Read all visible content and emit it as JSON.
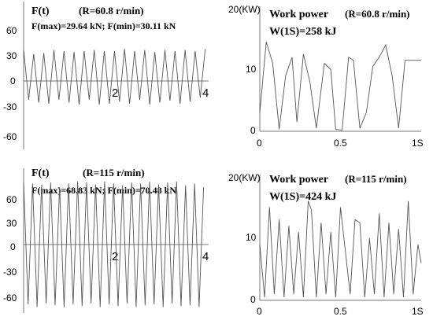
{
  "chart_data": [
    {
      "id": "force-60",
      "type": "line",
      "title_main": "F(t)",
      "title_cond": "(R=60.8 r/min)",
      "annotation": "F(max)=29.64 kN; F(min)=30.11 kN",
      "yticks": [
        "60",
        "30",
        "0",
        "-30",
        "-60"
      ],
      "xticks": [
        "2",
        "4"
      ],
      "xlim": [
        0,
        4.4
      ],
      "ylim": [
        -72,
        72
      ],
      "series": [
        {
          "values_x": [
            0,
            0.12,
            0.24,
            0.36,
            0.48,
            0.6,
            0.72,
            0.84,
            0.96,
            1.08,
            1.2,
            1.32,
            1.44,
            1.56,
            1.68,
            1.8,
            1.92,
            2.04,
            2.16,
            2.28,
            2.4,
            2.52,
            2.64,
            2.76,
            2.88,
            3.0,
            3.12,
            3.24,
            3.36,
            3.48,
            3.6,
            3.72,
            3.84,
            3.96,
            4.08,
            4.2,
            4.32
          ],
          "values_y": [
            28,
            -22,
            24,
            -25,
            25,
            -26,
            28,
            -22,
            27,
            -25,
            26,
            -27,
            27,
            -22,
            28,
            -27,
            27,
            -26,
            27,
            -24,
            29,
            -26,
            27,
            -22,
            28,
            -27,
            26,
            -25,
            28,
            -23,
            27,
            -26,
            28,
            -24,
            27,
            -20,
            29
          ]
        }
      ]
    },
    {
      "id": "power-60",
      "type": "line",
      "title_main": "Work power",
      "title_cond": "(R=60.8 r/min)",
      "annotation": "W(1S)=258 kJ",
      "ymax_label": "20(KW)",
      "yticks": [
        "10",
        "0"
      ],
      "xticks": [
        "0",
        "0.5",
        "1S"
      ],
      "xlim": [
        0,
        1
      ],
      "ylim": [
        0,
        20
      ],
      "series": [
        {
          "values_x": [
            0,
            0.04,
            0.08,
            0.12,
            0.16,
            0.2,
            0.23,
            0.27,
            0.31,
            0.35,
            0.4,
            0.44,
            0.47,
            0.51,
            0.55,
            0.58,
            0.62,
            0.66,
            0.7,
            0.74,
            0.78,
            0.82,
            0.86,
            0.9,
            0.94,
            0.98,
            1.0
          ],
          "values_y": [
            3,
            14.5,
            11,
            0.3,
            9,
            12,
            1.5,
            12.5,
            8,
            0.5,
            11,
            10,
            0.3,
            0.2,
            12,
            11.5,
            0.5,
            3,
            10.5,
            12,
            14,
            9,
            0.5,
            11.5,
            11.5,
            11.5,
            11.5
          ]
        }
      ]
    },
    {
      "id": "force-115",
      "type": "line",
      "title_main": "F(t)",
      "title_cond": "(R=115 r/min)",
      "annotation": "F(max)=68.83 kN; F(min)=70.48 kN",
      "yticks": [
        "60",
        "30",
        "0",
        "-30",
        "-60"
      ],
      "xticks": [
        "2",
        "4"
      ],
      "xlim": [
        0,
        4.4
      ],
      "ylim": [
        -78,
        72
      ],
      "series": [
        {
          "values_x": [
            0,
            0.107,
            0.214,
            0.321,
            0.428,
            0.535,
            0.642,
            0.749,
            0.856,
            0.963,
            1.07,
            1.177,
            1.284,
            1.391,
            1.498,
            1.605,
            1.712,
            1.819,
            1.926,
            2.033,
            2.14,
            2.247,
            2.354,
            2.461,
            2.568,
            2.675,
            2.782,
            2.889,
            2.996,
            3.103,
            3.21,
            3.317,
            3.424,
            3.531,
            3.638,
            3.745,
            3.852,
            3.959,
            4.066,
            4.173,
            4.28
          ],
          "values_y": [
            65,
            -67,
            64,
            -70,
            63,
            -66,
            65,
            -68,
            60,
            -70,
            64,
            -67,
            66,
            -69,
            65,
            -66,
            63,
            -70,
            66,
            -67,
            64,
            -69,
            62,
            -66,
            65,
            -70,
            64,
            -68,
            66,
            -67,
            63,
            -70,
            65,
            -66,
            66,
            -69,
            62,
            -68,
            64,
            -70,
            60
          ]
        }
      ]
    },
    {
      "id": "power-115",
      "type": "line",
      "title_main": "Work power",
      "title_cond": "(R=115 r/min)",
      "annotation": "W(1S)=424 kJ",
      "ymax_label": "20(KW)",
      "yticks": [
        "10",
        "0"
      ],
      "xticks": [
        "0",
        "0.5",
        "1S"
      ],
      "xlim": [
        0,
        1
      ],
      "ylim": [
        0,
        20
      ],
      "series": [
        {
          "values_x": [
            0,
            0.03,
            0.06,
            0.09,
            0.12,
            0.15,
            0.18,
            0.21,
            0.24,
            0.27,
            0.3,
            0.32,
            0.35,
            0.38,
            0.41,
            0.44,
            0.47,
            0.5,
            0.53,
            0.56,
            0.59,
            0.62,
            0.65,
            0.68,
            0.71,
            0.74,
            0.77,
            0.8,
            0.83,
            0.86,
            0.89,
            0.92,
            0.95,
            0.98,
            1.0
          ],
          "values_y": [
            9,
            0.5,
            15,
            1,
            13,
            0.5,
            12,
            1,
            11,
            0.5,
            16,
            14.5,
            0.5,
            12.5,
            1,
            11,
            0.5,
            15,
            8,
            1,
            13,
            12.5,
            0.5,
            10,
            1,
            14,
            0.5,
            12.5,
            1,
            11.5,
            0.5,
            16,
            1,
            9,
            6
          ]
        }
      ]
    }
  ]
}
